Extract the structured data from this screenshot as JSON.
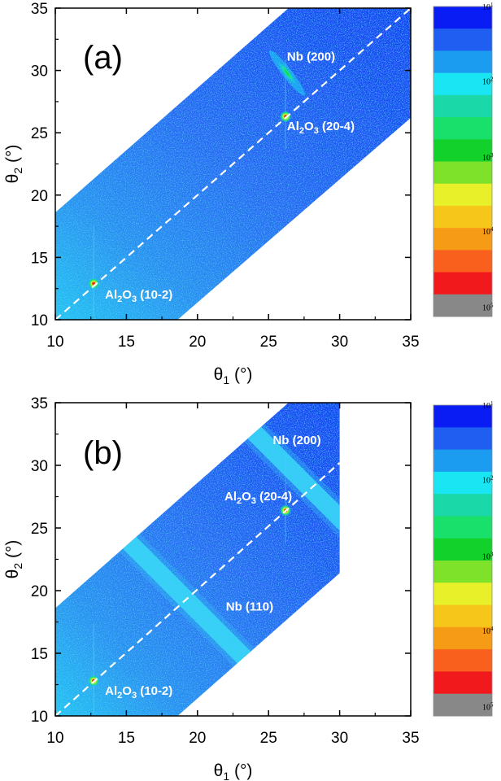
{
  "chart_data": [
    {
      "type": "heatmap",
      "panel_label": "(a)",
      "xlabel": {
        "symbol": "θ",
        "sub": "1",
        "unit": " (°)"
      },
      "ylabel": {
        "symbol": "θ",
        "sub": "2",
        "unit": " (°)"
      },
      "xlim": [
        10,
        35
      ],
      "ylim": [
        10,
        35
      ],
      "xticks": [
        "10",
        "15",
        "20",
        "25",
        "30",
        "35"
      ],
      "yticks": [
        "10",
        "15",
        "20",
        "25",
        "30",
        "35"
      ],
      "measured_region": [
        [
          10,
          10
        ],
        [
          10,
          18.6
        ],
        [
          26.4,
          35
        ],
        [
          35,
          35
        ],
        [
          35,
          26.2
        ],
        [
          18.6,
          10
        ]
      ],
      "diagonal_line": {
        "style": "dashed",
        "from": [
          10,
          10
        ],
        "to": [
          35,
          35
        ]
      },
      "annotations": [
        {
          "main": "Nb (200)",
          "sub": "",
          "tail": "",
          "x": 26.3,
          "y": 30.8
        },
        {
          "main": "Al",
          "sub": "2",
          "mid": "O",
          "sub2": "3",
          "tail": " (20-4)",
          "x": 26.3,
          "y": 25.2
        },
        {
          "main": "Al",
          "sub": "2",
          "mid": "O",
          "sub2": "3",
          "tail": " (10-2)",
          "x": 13.5,
          "y": 11.7
        }
      ],
      "peaks": [
        {
          "name": "Nb (200)",
          "theta1": 26.3,
          "theta2": 29.8,
          "shape": "elongated-streak"
        },
        {
          "name": "Al2O3 (20-4)",
          "theta1": 26.2,
          "theta2": 26.3,
          "shape": "spot"
        },
        {
          "name": "Al2O3 (10-2)",
          "theta1": 12.7,
          "theta2": 12.9,
          "shape": "spot"
        }
      ],
      "colorbar": {
        "scale": "log",
        "tick_labels": [
          {
            "base": "10",
            "exp": "1"
          },
          {
            "base": "10",
            "exp": "2"
          },
          {
            "base": "10",
            "exp": "3"
          },
          {
            "base": "10",
            "exp": "4"
          },
          {
            "base": "10",
            "exp": "5"
          }
        ],
        "colors": [
          "#0a1cf4",
          "#1f5ef0",
          "#1b9cf0",
          "#19e6f2",
          "#1ad8a8",
          "#19e06a",
          "#11d12a",
          "#7ee22a",
          "#e8f02a",
          "#f7c61a",
          "#f69b15",
          "#f9601d",
          "#f2191d",
          "#888888"
        ]
      }
    },
    {
      "type": "heatmap",
      "panel_label": "(b)",
      "xlabel": {
        "symbol": "θ",
        "sub": "1",
        "unit": " (°)"
      },
      "ylabel": {
        "symbol": "θ",
        "sub": "2",
        "unit": " (°)"
      },
      "xlim": [
        10,
        35
      ],
      "ylim": [
        10,
        35
      ],
      "xticks": [
        "10",
        "15",
        "20",
        "25",
        "30",
        "35"
      ],
      "yticks": [
        "10",
        "15",
        "20",
        "25",
        "30",
        "35"
      ],
      "measured_region": [
        [
          10,
          10
        ],
        [
          10,
          18.6
        ],
        [
          26.4,
          35
        ],
        [
          30,
          35
        ],
        [
          30,
          21.4
        ],
        [
          18.6,
          10
        ]
      ],
      "diagonal_line": {
        "style": "dashed",
        "from": [
          10,
          10
        ],
        "to": [
          30,
          30.2
        ]
      },
      "annotations": [
        {
          "main": "Nb (200)",
          "sub": "",
          "tail": "",
          "x": 25.3,
          "y": 31.7
        },
        {
          "main": "Al",
          "sub": "2",
          "mid": "O",
          "sub2": "3",
          "tail": " (20-4)",
          "x": 21.9,
          "y": 27.2
        },
        {
          "main": "Nb (110)",
          "sub": "",
          "tail": "",
          "x": 22.0,
          "y": 18.4
        },
        {
          "main": "Al",
          "sub": "2",
          "mid": "O",
          "sub2": "3",
          "tail": " (10-2)",
          "x": 13.5,
          "y": 11.7
        }
      ],
      "peaks": [
        {
          "name": "Nb (200)",
          "theta1": 28.5,
          "theta2": 27.5,
          "shape": "band"
        },
        {
          "name": "Al2O3 (20-4)",
          "theta1": 26.2,
          "theta2": 26.4,
          "shape": "spot"
        },
        {
          "name": "Nb (110)",
          "theta1": 19.2,
          "theta2": 19.3,
          "shape": "band"
        },
        {
          "name": "Al2O3 (10-2)",
          "theta1": 12.7,
          "theta2": 12.8,
          "shape": "spot"
        }
      ],
      "colorbar": {
        "scale": "log",
        "tick_labels": [
          {
            "base": "10",
            "exp": "1"
          },
          {
            "base": "10",
            "exp": "2"
          },
          {
            "base": "10",
            "exp": "3"
          },
          {
            "base": "10",
            "exp": "4"
          },
          {
            "base": "10",
            "exp": "5"
          }
        ],
        "colors": [
          "#0a1cf4",
          "#1f5ef0",
          "#1b9cf0",
          "#19e6f2",
          "#1ad8a8",
          "#19e06a",
          "#11d12a",
          "#7ee22a",
          "#e8f02a",
          "#f7c61a",
          "#f69b15",
          "#f9601d",
          "#f2191d",
          "#888888"
        ]
      }
    }
  ]
}
